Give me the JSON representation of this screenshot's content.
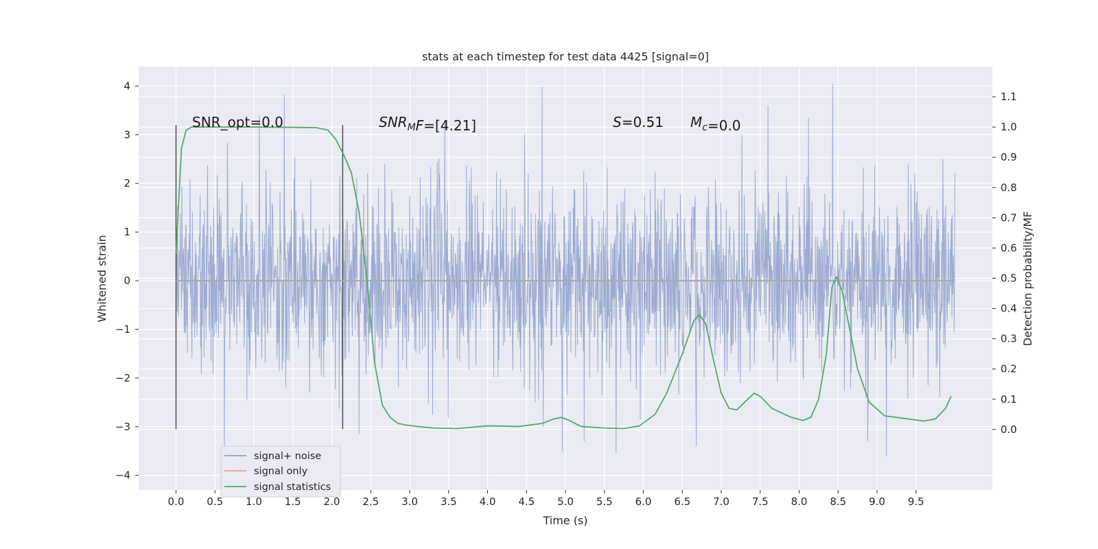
{
  "chart_data": {
    "type": "line",
    "title": "stats at each timestep for test data 4425 [signal=0]",
    "xlabel": "Time (s)",
    "ylabel": "Whitened strain",
    "ylabel_right": "Detection probability/MF",
    "xlim": [
      -0.48,
      10.48
    ],
    "ylim": [
      -4.3,
      4.4
    ],
    "ylim_right": [
      -0.2,
      1.2
    ],
    "x_ticks": [
      0.0,
      0.5,
      1.0,
      1.5,
      2.0,
      2.5,
      3.0,
      3.5,
      4.0,
      4.5,
      5.0,
      5.5,
      6.0,
      6.5,
      7.0,
      7.5,
      8.0,
      8.5,
      9.0,
      9.5
    ],
    "x_tick_labels": [
      "0.0",
      "0.5",
      "1.0",
      "1.5",
      "2.0",
      "2.5",
      "3.0",
      "3.5",
      "4.0",
      "4.5",
      "5.0",
      "5.5",
      "6.0",
      "6.5",
      "7.0",
      "7.5",
      "8.0",
      "8.5",
      "9.0",
      "9.5"
    ],
    "y_ticks": [
      -4,
      -3,
      -2,
      -1,
      0,
      1,
      2,
      3,
      4
    ],
    "y_tick_labels": [
      "−4",
      "−3",
      "−2",
      "−1",
      "0",
      "1",
      "2",
      "3",
      "4"
    ],
    "y_right_ticks": [
      0.0,
      0.1,
      0.2,
      0.3,
      0.4,
      0.5,
      0.6,
      0.7,
      0.8,
      0.9,
      1.0,
      1.1
    ],
    "y_right_tick_labels": [
      "0.0",
      "0.1",
      "0.2",
      "0.3",
      "0.4",
      "0.5",
      "0.6",
      "0.7",
      "0.8",
      "0.9",
      "1.0",
      "1.1"
    ],
    "grid": true,
    "legend_position": "lower-left",
    "annotations": [
      {
        "id": "snr-opt",
        "parts": [
          {
            "text": "SNR_opt=0.0",
            "style": "normal"
          }
        ]
      },
      {
        "id": "snr-mf",
        "parts": [
          {
            "text": "SNR",
            "style": "italic"
          },
          {
            "text": "M",
            "style": "italic-sub"
          },
          {
            "text": "F",
            "style": "italic"
          },
          {
            "text": "=[4.21]",
            "style": "normal"
          }
        ]
      },
      {
        "id": "s-stat",
        "parts": [
          {
            "text": "S",
            "style": "italic"
          },
          {
            "text": "=0.51",
            "style": "normal"
          }
        ]
      },
      {
        "id": "mc-stat",
        "parts": [
          {
            "text": "M",
            "style": "italic"
          },
          {
            "text": "c",
            "style": "italic-sub"
          },
          {
            "text": "=0.0",
            "style": "normal"
          }
        ]
      }
    ],
    "vertical_markers": [
      {
        "x": 0.0,
        "y_range": [
          -3.05,
          3.2
        ]
      },
      {
        "x": 2.14,
        "y_range": [
          -3.05,
          3.2
        ]
      }
    ],
    "series": [
      {
        "name": "signal+ noise",
        "color": "#8da0cb",
        "x_range": [
          0.0,
          10.0
        ],
        "x_step": 0.005,
        "band_mean": 0.0,
        "band_std": 1.0,
        "envelope_upper": 3.0,
        "envelope_lower": -3.0,
        "spikes": [
          {
            "x": 0.62,
            "y": -3.75
          },
          {
            "x": 1.39,
            "y": 3.82
          },
          {
            "x": 4.7,
            "y": 3.98
          },
          {
            "x": 4.96,
            "y": -3.5
          },
          {
            "x": 5.24,
            "y": -3.3
          },
          {
            "x": 5.65,
            "y": -3.55
          },
          {
            "x": 6.68,
            "y": -3.4
          },
          {
            "x": 8.43,
            "y": 4.05
          },
          {
            "x": 8.88,
            "y": -3.3
          },
          {
            "x": 9.12,
            "y": -3.6
          },
          {
            "x": 1.07,
            "y": 3.4
          },
          {
            "x": 2.35,
            "y": -3.15
          },
          {
            "x": 3.45,
            "y": 3.3
          },
          {
            "x": 7.6,
            "y": 3.6
          },
          {
            "x": 8.12,
            "y": 3.35
          }
        ]
      },
      {
        "name": "signal only",
        "color": "#e5a58a",
        "x": [
          0.0,
          10.0
        ],
        "y": [
          0.0,
          0.0
        ]
      },
      {
        "name": "signal statistics",
        "color": "#55a868",
        "axis": "right",
        "x": [
          0.0,
          0.07,
          0.13,
          0.2,
          0.3,
          0.5,
          1.0,
          1.5,
          1.8,
          1.95,
          2.05,
          2.15,
          2.25,
          2.35,
          2.45,
          2.55,
          2.65,
          2.75,
          2.85,
          2.95,
          3.1,
          3.3,
          3.6,
          4.0,
          4.4,
          4.7,
          4.85,
          4.95,
          5.05,
          5.2,
          5.5,
          5.75,
          5.95,
          6.15,
          6.3,
          6.5,
          6.65,
          6.72,
          6.8,
          6.9,
          7.0,
          7.1,
          7.2,
          7.3,
          7.42,
          7.5,
          7.65,
          7.9,
          8.05,
          8.15,
          8.25,
          8.35,
          8.42,
          8.48,
          8.55,
          8.65,
          8.75,
          8.9,
          9.1,
          9.4,
          9.6,
          9.75,
          9.88,
          9.95
        ],
        "y": [
          0.58,
          0.93,
          0.99,
          1.0,
          1.0,
          1.0,
          1.0,
          0.999,
          0.998,
          0.99,
          0.96,
          0.91,
          0.85,
          0.72,
          0.5,
          0.22,
          0.08,
          0.04,
          0.02,
          0.015,
          0.01,
          0.005,
          0.003,
          0.012,
          0.01,
          0.02,
          0.035,
          0.04,
          0.03,
          0.01,
          0.005,
          0.003,
          0.012,
          0.05,
          0.12,
          0.25,
          0.36,
          0.38,
          0.35,
          0.23,
          0.12,
          0.07,
          0.065,
          0.09,
          0.12,
          0.11,
          0.07,
          0.04,
          0.03,
          0.04,
          0.1,
          0.25,
          0.47,
          0.505,
          0.46,
          0.33,
          0.2,
          0.09,
          0.045,
          0.035,
          0.028,
          0.035,
          0.07,
          0.11
        ]
      }
    ]
  }
}
